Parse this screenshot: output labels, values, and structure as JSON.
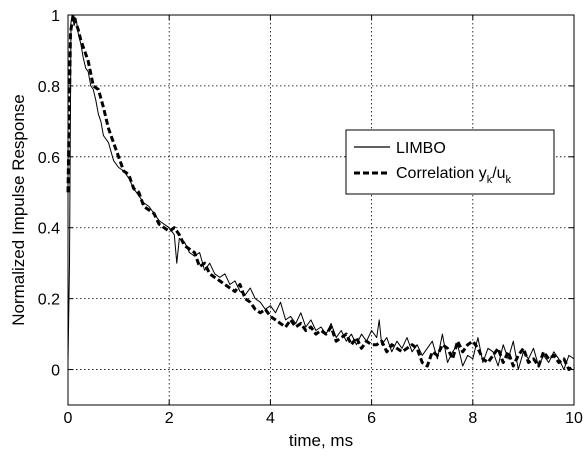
{
  "chart_data": {
    "type": "line",
    "xlabel": "time, ms",
    "ylabel": "Normalized Impulse Response",
    "xlim": [
      0,
      10
    ],
    "ylim": [
      -0.1,
      1
    ],
    "xticks": [
      "0",
      "2",
      "4",
      "6",
      "8",
      "10"
    ],
    "yticks": [
      "0",
      "0.2",
      "0.4",
      "0.6",
      "0.8",
      "1"
    ],
    "grid": true,
    "legend_position": "right",
    "legend": {
      "limbo": "LIMBO",
      "corr_prefix": "Correlation y",
      "corr_sub1": "k",
      "corr_mid": "/u",
      "corr_sub2": "k"
    },
    "series": [
      {
        "name": "LIMBO",
        "style": "solid",
        "x": [
          0.0,
          0.03,
          0.06,
          0.09,
          0.12,
          0.16,
          0.2,
          0.25,
          0.3,
          0.35,
          0.4,
          0.45,
          0.5,
          0.55,
          0.6,
          0.65,
          0.7,
          0.8,
          0.9,
          1.0,
          1.1,
          1.2,
          1.3,
          1.4,
          1.5,
          1.6,
          1.7,
          1.8,
          1.9,
          2.0,
          2.1,
          2.15,
          2.2,
          2.3,
          2.4,
          2.5,
          2.6,
          2.7,
          2.8,
          2.9,
          3.0,
          3.1,
          3.2,
          3.3,
          3.4,
          3.5,
          3.6,
          3.7,
          3.8,
          3.9,
          4.0,
          4.1,
          4.2,
          4.3,
          4.4,
          4.5,
          4.6,
          4.7,
          4.8,
          4.9,
          5.0,
          5.1,
          5.2,
          5.3,
          5.4,
          5.5,
          5.6,
          5.7,
          5.8,
          5.9,
          6.0,
          6.1,
          6.15,
          6.2,
          6.3,
          6.4,
          6.5,
          6.6,
          6.7,
          6.8,
          6.9,
          7.0,
          7.1,
          7.2,
          7.3,
          7.4,
          7.5,
          7.6,
          7.7,
          7.8,
          7.9,
          8.0,
          8.1,
          8.2,
          8.3,
          8.4,
          8.5,
          8.6,
          8.7,
          8.8,
          8.9,
          9.0,
          9.1,
          9.2,
          9.3,
          9.4,
          9.5,
          9.6,
          9.7,
          9.8,
          9.9,
          10.0
        ],
        "y": [
          0.02,
          0.3,
          0.98,
          1.0,
          0.97,
          0.99,
          0.95,
          0.92,
          0.88,
          0.85,
          0.84,
          0.8,
          0.79,
          0.76,
          0.72,
          0.7,
          0.66,
          0.64,
          0.59,
          0.57,
          0.56,
          0.54,
          0.51,
          0.49,
          0.47,
          0.46,
          0.44,
          0.42,
          0.41,
          0.4,
          0.38,
          0.3,
          0.37,
          0.36,
          0.33,
          0.32,
          0.33,
          0.28,
          0.3,
          0.27,
          0.26,
          0.27,
          0.24,
          0.25,
          0.22,
          0.21,
          0.23,
          0.2,
          0.19,
          0.17,
          0.18,
          0.16,
          0.19,
          0.14,
          0.15,
          0.13,
          0.16,
          0.12,
          0.14,
          0.11,
          0.12,
          0.1,
          0.13,
          0.09,
          0.11,
          0.08,
          0.1,
          0.07,
          0.1,
          0.08,
          0.11,
          0.09,
          0.14,
          0.07,
          0.09,
          0.05,
          0.08,
          0.06,
          0.09,
          0.05,
          0.07,
          0.04,
          0.06,
          0.08,
          0.03,
          0.1,
          0.02,
          0.05,
          0.07,
          0.01,
          0.04,
          0.03,
          0.09,
          0.02,
          0.06,
          0.05,
          0.01,
          0.07,
          0.03,
          0.08,
          0.0,
          0.05,
          0.03,
          0.06,
          0.01,
          0.04,
          0.02,
          0.05,
          0.03,
          0.0,
          0.04,
          0.03
        ]
      },
      {
        "name": "Correlation y_k/u_k",
        "style": "dashed",
        "x": [
          0.0,
          0.05,
          0.1,
          0.15,
          0.2,
          0.25,
          0.3,
          0.4,
          0.5,
          0.6,
          0.7,
          0.8,
          0.9,
          1.0,
          1.1,
          1.2,
          1.3,
          1.4,
          1.5,
          1.6,
          1.7,
          1.8,
          1.9,
          2.0,
          2.1,
          2.2,
          2.3,
          2.4,
          2.5,
          2.6,
          2.7,
          2.8,
          2.9,
          3.0,
          3.1,
          3.2,
          3.3,
          3.4,
          3.5,
          3.6,
          3.7,
          3.8,
          3.9,
          4.0,
          4.1,
          4.2,
          4.3,
          4.4,
          4.5,
          4.6,
          4.7,
          4.8,
          4.9,
          5.0,
          5.1,
          5.2,
          5.3,
          5.4,
          5.5,
          5.6,
          5.7,
          5.8,
          5.9,
          6.0,
          6.1,
          6.2,
          6.3,
          6.4,
          6.5,
          6.6,
          6.7,
          6.8,
          6.9,
          7.0,
          7.1,
          7.2,
          7.3,
          7.4,
          7.5,
          7.6,
          7.7,
          7.8,
          7.9,
          8.0,
          8.1,
          8.2,
          8.3,
          8.4,
          8.5,
          8.6,
          8.7,
          8.8,
          8.9,
          9.0,
          9.1,
          9.2,
          9.3,
          9.4,
          9.5,
          9.6,
          9.7,
          9.8,
          9.9,
          10.0
        ],
        "y": [
          0.5,
          0.95,
          1.0,
          0.98,
          0.96,
          0.93,
          0.91,
          0.87,
          0.8,
          0.79,
          0.74,
          0.68,
          0.64,
          0.6,
          0.56,
          0.55,
          0.51,
          0.5,
          0.46,
          0.45,
          0.44,
          0.41,
          0.4,
          0.39,
          0.4,
          0.38,
          0.35,
          0.34,
          0.33,
          0.29,
          0.3,
          0.27,
          0.26,
          0.25,
          0.24,
          0.23,
          0.22,
          0.24,
          0.2,
          0.19,
          0.17,
          0.16,
          0.17,
          0.15,
          0.14,
          0.13,
          0.12,
          0.14,
          0.12,
          0.13,
          0.11,
          0.12,
          0.1,
          0.11,
          0.1,
          0.12,
          0.08,
          0.09,
          0.1,
          0.07,
          0.09,
          0.06,
          0.08,
          0.07,
          0.07,
          0.08,
          0.05,
          0.07,
          0.06,
          0.05,
          0.06,
          0.07,
          0.06,
          0.02,
          0.01,
          0.05,
          0.04,
          0.07,
          0.06,
          0.03,
          0.08,
          0.05,
          0.07,
          0.08,
          0.06,
          0.03,
          0.02,
          0.04,
          0.06,
          0.02,
          0.05,
          0.01,
          0.04,
          0.06,
          0.02,
          0.03,
          0.01,
          0.05,
          0.03,
          0.04,
          0.02,
          0.03,
          0.0,
          0.01
        ]
      }
    ]
  }
}
